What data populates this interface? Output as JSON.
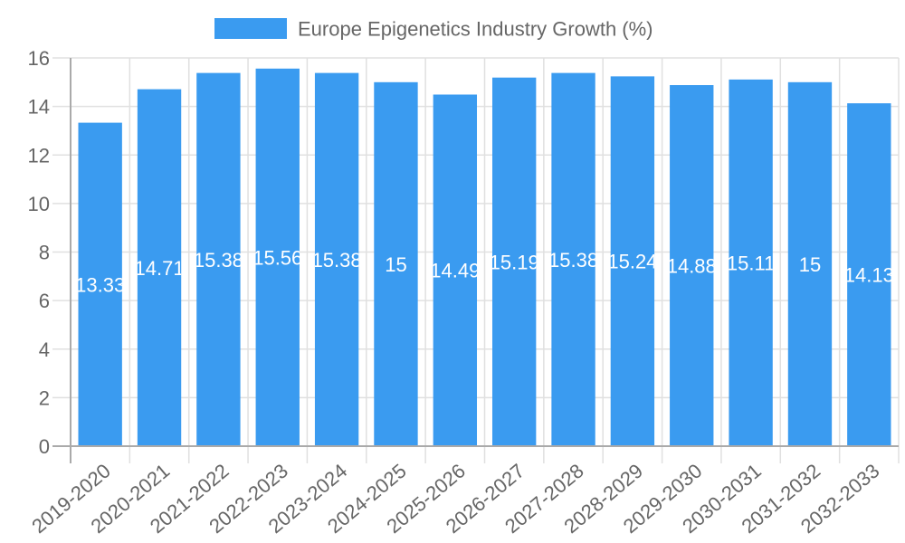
{
  "chart_data": {
    "type": "bar",
    "title": "",
    "legend": {
      "entries": [
        "Europe Epigenetics Industry Growth (%)"
      ],
      "placement": "top-center"
    },
    "xlabel": "",
    "ylabel": "",
    "ylim": [
      0,
      16
    ],
    "yticks": [
      "0",
      "2",
      "4",
      "6",
      "8",
      "10",
      "12",
      "14",
      "16"
    ],
    "grid": true,
    "categories": [
      "2019-2020",
      "2020-2021",
      "2021-2022",
      "2022-2023",
      "2023-2024",
      "2024-2025",
      "2025-2026",
      "2026-2027",
      "2027-2028",
      "2028-2029",
      "2029-2030",
      "2030-2031",
      "2031-2032",
      "2032-2033"
    ],
    "series": [
      {
        "name": "Europe Epigenetics Industry Growth (%)",
        "color": "#3a9bf0",
        "values": [
          13.33,
          14.71,
          15.38,
          15.56,
          15.38,
          15,
          14.49,
          15.19,
          15.38,
          15.24,
          14.88,
          15.11,
          15,
          14.13
        ],
        "labels": [
          "13.33",
          "14.71",
          "15.38",
          "15.56",
          "15.38",
          "15",
          "14.49",
          "15.19",
          "15.38",
          "15.24",
          "14.88",
          "15.11",
          "15",
          "14.13"
        ]
      }
    ]
  }
}
